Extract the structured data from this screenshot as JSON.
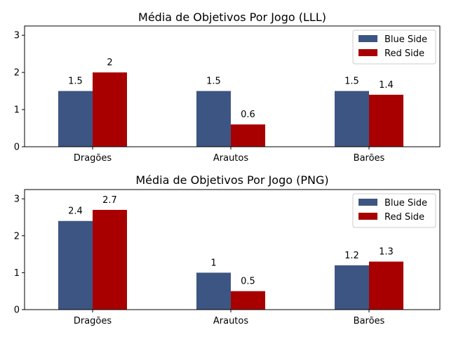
{
  "chart_data": [
    {
      "type": "bar",
      "title": "Média de Objetivos Por Jogo (LLL)",
      "xlabel": "",
      "ylabel": "",
      "categories": [
        "Dragões",
        "Arautos",
        "Barões"
      ],
      "ylim": [
        0,
        3.25
      ],
      "yticks": [
        "0",
        "1",
        "2",
        "3"
      ],
      "legend_position": "top-right",
      "series": [
        {
          "name": "Blue Side",
          "color": "#3d5582",
          "values": [
            1.5,
            1.5,
            1.5
          ],
          "labels": [
            "1.5",
            "1.5",
            "1.5"
          ]
        },
        {
          "name": "Red Side",
          "color": "#a80000",
          "values": [
            2.0,
            0.6,
            1.4
          ],
          "labels": [
            "2",
            "0.6",
            "1.4"
          ]
        }
      ]
    },
    {
      "type": "bar",
      "title": "Média de Objetivos Por Jogo (PNG)",
      "xlabel": "",
      "ylabel": "",
      "categories": [
        "Dragões",
        "Arautos",
        "Barões"
      ],
      "ylim": [
        0,
        3.25
      ],
      "yticks": [
        "0",
        "1",
        "2",
        "3"
      ],
      "legend_position": "top-right",
      "series": [
        {
          "name": "Blue Side",
          "color": "#3d5582",
          "values": [
            2.4,
            1.0,
            1.2
          ],
          "labels": [
            "2.4",
            "1",
            "1.2"
          ]
        },
        {
          "name": "Red Side",
          "color": "#a80000",
          "values": [
            2.7,
            0.5,
            1.3
          ],
          "labels": [
            "2.7",
            "0.5",
            "1.3"
          ]
        }
      ]
    }
  ]
}
